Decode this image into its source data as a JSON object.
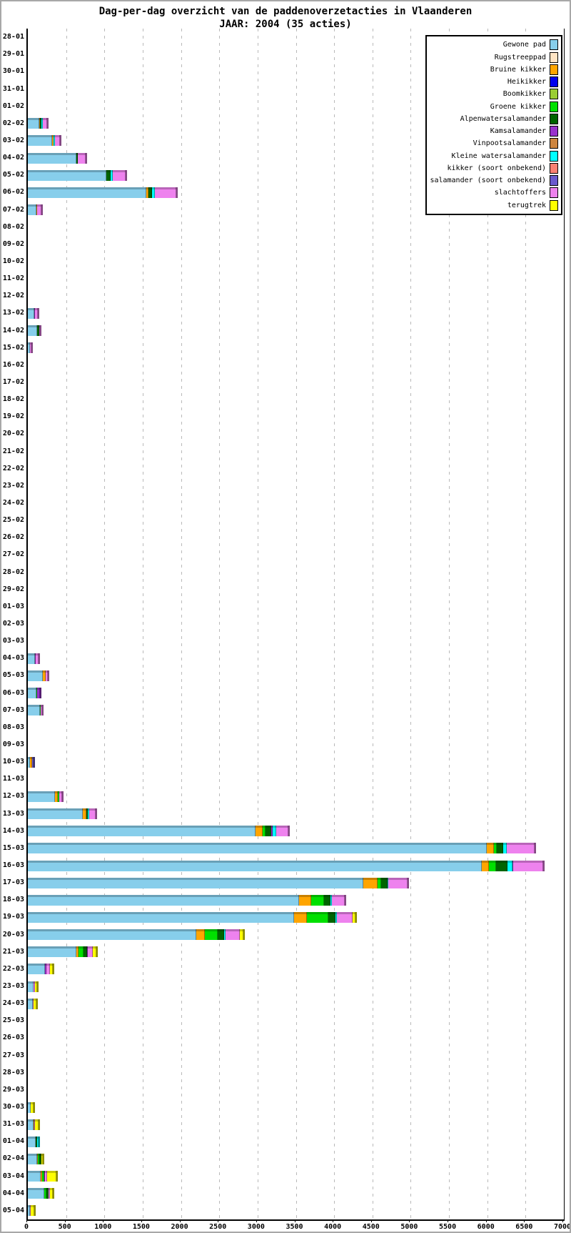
{
  "title": "Dag-per-dag overzicht van de paddenoverzetacties in Vlaanderen",
  "subtitle": "JAAR: 2004 (35 acties)",
  "chart_data": {
    "type": "bar",
    "orientation": "horizontal",
    "stacked": true,
    "title": "Dag-per-dag overzicht van de paddenoverzetacties in Vlaanderen",
    "subtitle": "JAAR: 2004 (35 acties)",
    "xlabel": "",
    "ylabel": "",
    "xlim": [
      0,
      7000
    ],
    "xtick_step": 500,
    "xticks": [
      0,
      500,
      1000,
      1500,
      2000,
      2500,
      3000,
      3500,
      4000,
      4500,
      5000,
      5500,
      6000,
      6500,
      7000
    ],
    "grid": "vertical dashed gray lines every 500",
    "legend_position": "top-right",
    "series": [
      {
        "name": "Gewone pad",
        "color": "#87CEEB"
      },
      {
        "name": "Rugstreeppad",
        "color": "#FFE4C4"
      },
      {
        "name": "Bruine kikker",
        "color": "#FFA500"
      },
      {
        "name": "Heikikker",
        "color": "#0000EE"
      },
      {
        "name": "Boomkikker",
        "color": "#9ACD32"
      },
      {
        "name": "Groene kikker",
        "color": "#00E000"
      },
      {
        "name": "Alpenwatersalamander",
        "color": "#006400"
      },
      {
        "name": "Kamsalamander",
        "color": "#9932CC"
      },
      {
        "name": "Vinpootsalamander",
        "color": "#CD853F"
      },
      {
        "name": "Kleine watersalamander",
        "color": "#00FFFF"
      },
      {
        "name": "kikker (soort onbekend)",
        "color": "#FA8072"
      },
      {
        "name": "salamander (soort onbekend)",
        "color": "#6A5ACD"
      },
      {
        "name": "slachtoffers",
        "color": "#EE82EE"
      },
      {
        "name": "terugtrek",
        "color": "#FFFF00"
      }
    ],
    "categories": [
      "28-01",
      "29-01",
      "30-01",
      "31-01",
      "01-02",
      "02-02",
      "03-02",
      "04-02",
      "05-02",
      "06-02",
      "07-02",
      "08-02",
      "09-02",
      "10-02",
      "11-02",
      "12-02",
      "13-02",
      "14-02",
      "15-02",
      "16-02",
      "17-02",
      "18-02",
      "19-02",
      "20-02",
      "21-02",
      "22-02",
      "23-02",
      "24-02",
      "25-02",
      "26-02",
      "27-02",
      "28-02",
      "29-02",
      "01-03",
      "02-03",
      "03-03",
      "04-03",
      "05-03",
      "06-03",
      "07-03",
      "08-03",
      "09-03",
      "10-03",
      "11-03",
      "12-03",
      "13-03",
      "14-03",
      "15-03",
      "16-03",
      "17-03",
      "18-03",
      "19-03",
      "20-03",
      "21-03",
      "22-03",
      "23-03",
      "24-03",
      "25-03",
      "26-03",
      "27-03",
      "28-03",
      "29-03",
      "30-03",
      "31-03",
      "01-04",
      "02-04",
      "03-04",
      "04-04",
      "05-04"
    ],
    "values": {
      "02-02": {
        "Gewone pad": 150,
        "Bruine kikker": 10,
        "Alpenwatersalamander": 20,
        "Kleine watersalamander": 15,
        "slachtoffers": 60
      },
      "03-02": {
        "Gewone pad": 320,
        "Bruine kikker": 15,
        "Kleine watersalamander": 15,
        "slachtoffers": 70
      },
      "04-02": {
        "Gewone pad": 630,
        "Alpenwatersalamander": 20,
        "slachtoffers": 105
      },
      "05-02": {
        "Gewone pad": 1025,
        "Alpenwatersalamander": 55,
        "Kleine watersalamander": 25,
        "slachtoffers": 175
      },
      "06-02": {
        "Gewone pad": 1550,
        "Bruine kikker": 30,
        "Alpenwatersalamander": 45,
        "Kleine watersalamander": 30,
        "slachtoffers": 280
      },
      "07-02": {
        "Gewone pad": 115,
        "Bruine kikker": 10,
        "slachtoffers": 55
      },
      "13-02": {
        "Gewone pad": 85,
        "Kamsalamander": 5,
        "slachtoffers": 35
      },
      "14-02": {
        "Gewone pad": 125,
        "Alpenwatersalamander": 20,
        "slachtoffers": 10
      },
      "15-02": {
        "Gewone pad": 30,
        "slachtoffers": 15
      },
      "04-03": {
        "Gewone pad": 95,
        "Kamsalamander": 5,
        "slachtoffers": 35
      },
      "05-03": {
        "Gewone pad": 200,
        "Bruine kikker": 30,
        "slachtoffers": 35
      },
      "06-03": {
        "Gewone pad": 110,
        "Groene kikker": 15,
        "Kamsalamander": 35
      },
      "07-03": {
        "Gewone pad": 155,
        "Groene kikker": 15,
        "slachtoffers": 20
      },
      "10-03": {
        "Gewone pad": 30,
        "Bruine kikker": 25,
        "salamander (soort onbekend)": 20
      },
      "12-03": {
        "Gewone pad": 350,
        "Bruine kikker": 45,
        "Groene kikker": 15,
        "slachtoffers": 35
      },
      "13-03": {
        "Gewone pad": 720,
        "Bruine kikker": 45,
        "Alpenwatersalamander": 20,
        "Kleine watersalamander": 20,
        "slachtoffers": 85
      },
      "14-03": {
        "Gewone pad": 2970,
        "Bruine kikker": 100,
        "Groene kikker": 30,
        "Alpenwatersalamander": 80,
        "Kamsalamander": 15,
        "Kleine watersalamander": 45,
        "slachtoffers": 160
      },
      "15-03": {
        "Gewone pad": 5990,
        "Bruine kikker": 95,
        "Groene kikker": 35,
        "Alpenwatersalamander": 85,
        "Kleine watersalamander": 45,
        "slachtoffers": 370
      },
      "16-03": {
        "Gewone pad": 5925,
        "Bruine kikker": 95,
        "Groene kikker": 95,
        "Alpenwatersalamander": 150,
        "Kleine watersalamander": 60,
        "salamander (soort onbekend)": 15,
        "slachtoffers": 390
      },
      "17-03": {
        "Gewone pad": 4385,
        "Bruine kikker": 185,
        "Groene kikker": 45,
        "Alpenwatersalamander": 80,
        "Kleine watersalamander": 15,
        "slachtoffers": 250
      },
      "18-03": {
        "Gewone pad": 3540,
        "Bruine kikker": 160,
        "Groene kikker": 170,
        "Alpenwatersalamander": 80,
        "Kleine watersalamander": 20,
        "slachtoffers": 170
      },
      "19-03": {
        "Gewone pad": 3475,
        "Bruine kikker": 165,
        "Groene kikker": 280,
        "Alpenwatersalamander": 95,
        "Kleine watersalamander": 20,
        "slachtoffers": 210,
        "terugtrek": 35
      },
      "20-03": {
        "Gewone pad": 2200,
        "Bruine kikker": 115,
        "Groene kikker": 165,
        "Alpenwatersalamander": 85,
        "Kleine watersalamander": 20,
        "slachtoffers": 180,
        "terugtrek": 55
      },
      "21-03": {
        "Gewone pad": 630,
        "Bruine kikker": 30,
        "Groene kikker": 65,
        "Alpenwatersalamander": 45,
        "Kamsalamander": 15,
        "slachtoffers": 60,
        "terugtrek": 55
      },
      "22-03": {
        "Gewone pad": 225,
        "Kamsalamander": 15,
        "slachtoffers": 50,
        "terugtrek": 35
      },
      "23-03": {
        "Gewone pad": 75,
        "slachtoffers": 20,
        "terugtrek": 30
      },
      "24-03": {
        "Gewone pad": 65,
        "slachtoffers": 10,
        "terugtrek": 40
      },
      "30-03": {
        "Gewone pad": 40,
        "terugtrek": 35
      },
      "31-03": {
        "Gewone pad": 70,
        "Bruine kikker": 10,
        "slachtoffers": 10,
        "terugtrek": 50
      },
      "01-04": {
        "Gewone pad": 105,
        "Alpenwatersalamander": 20,
        "Kleine watersalamander": 15
      },
      "02-04": {
        "Gewone pad": 120,
        "Bruine kikker": 15,
        "Groene kikker": 10,
        "Alpenwatersalamander": 30,
        "terugtrek": 25
      },
      "03-04": {
        "Gewone pad": 170,
        "Bruine kikker": 15,
        "Groene kikker": 30,
        "Kamsalamander": 10,
        "slachtoffers": 30,
        "terugtrek": 115
      },
      "04-04": {
        "Gewone pad": 215,
        "Groene kikker": 30,
        "Alpenwatersalamander": 30,
        "slachtoffers": 10,
        "terugtrek": 40
      },
      "05-04": {
        "Gewone pad": 30,
        "slachtoffers": 10,
        "terugtrek": 40
      }
    }
  }
}
